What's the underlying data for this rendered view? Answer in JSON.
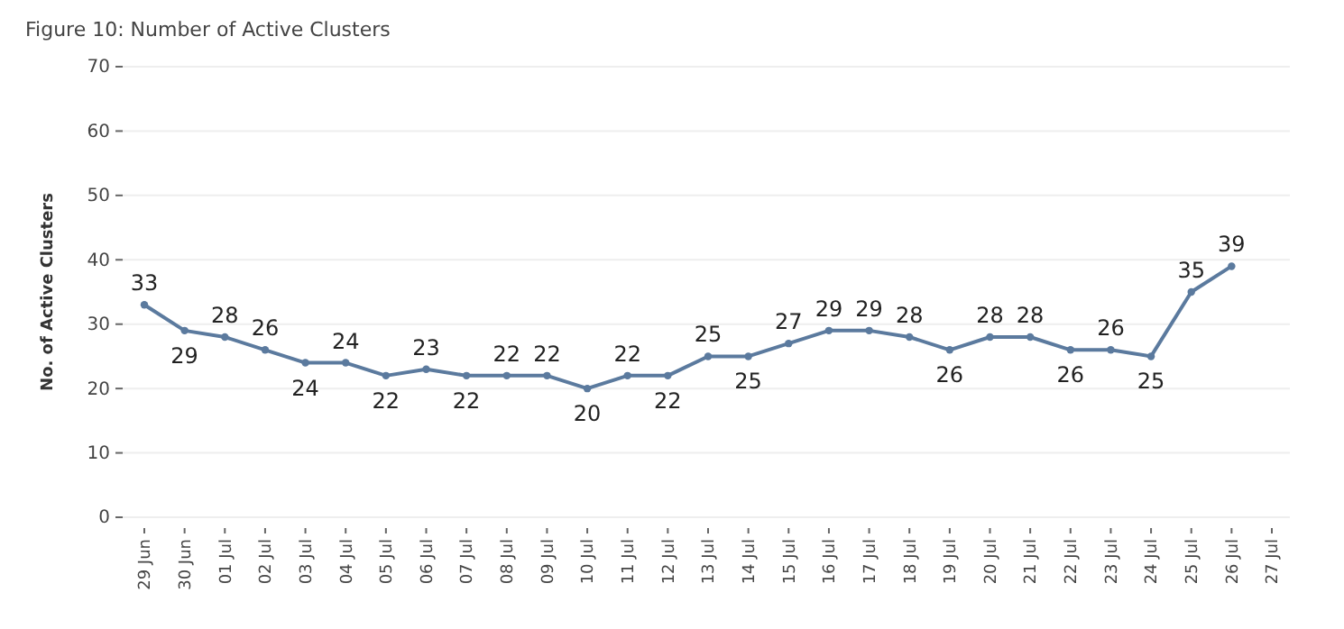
{
  "chart_data": {
    "type": "line",
    "title": "Figure 10: Number of Active Clusters",
    "ylabel": "No. of Active Clusters",
    "categories": [
      "29 Jun",
      "30 Jun",
      "01 Jul",
      "02 Jul",
      "03 Jul",
      "04 Jul",
      "05 Jul",
      "06 Jul",
      "07 Jul",
      "08 Jul",
      "09 Jul",
      "10 Jul",
      "11 Jul",
      "12 Jul",
      "13 Jul",
      "14 Jul",
      "15 Jul",
      "16 Jul",
      "17 Jul",
      "18 Jul",
      "19 Jul",
      "20 Jul",
      "21 Jul",
      "22 Jul",
      "23 Jul",
      "24 Jul",
      "25 Jul",
      "26 Jul",
      "27 Jul"
    ],
    "series": [
      {
        "color": "#5b7a9e",
        "values": [
          33,
          29,
          28,
          26,
          24,
          24,
          22,
          23,
          22,
          22,
          22,
          20,
          22,
          22,
          25,
          25,
          27,
          29,
          29,
          28,
          26,
          28,
          28,
          26,
          26,
          25,
          35,
          39,
          null
        ]
      }
    ],
    "ylim": [
      0,
      70
    ],
    "yticks": [
      0,
      10,
      20,
      30,
      40,
      50,
      60,
      70
    ],
    "grid": "y",
    "marker": "circle",
    "line_style": "solid",
    "data_labels": true
  }
}
